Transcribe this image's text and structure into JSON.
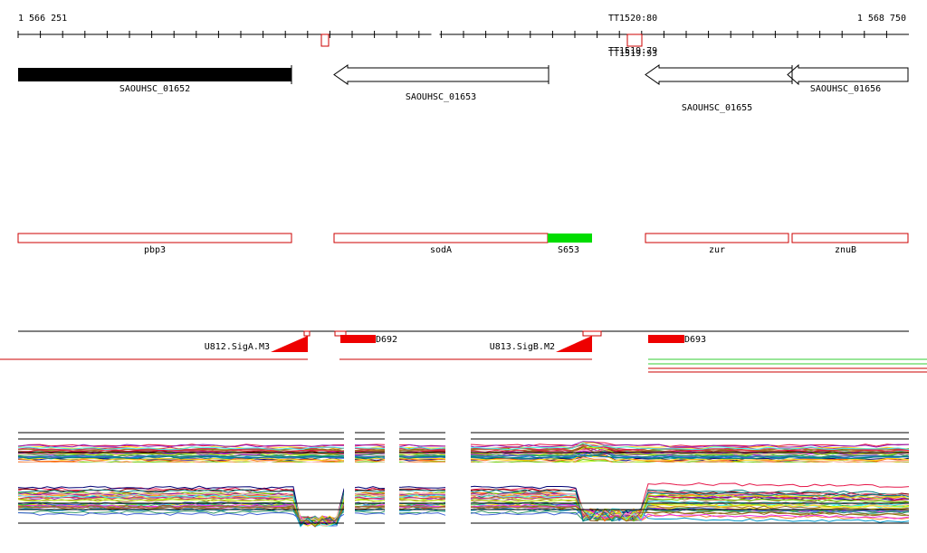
{
  "ruler": {
    "start_label": "1 566 251",
    "end_label": "1 568 750",
    "terminators": [
      "TT1520:80",
      "TT1519:79",
      "TT1519:93"
    ]
  },
  "genes": [
    {
      "id": "SAOUHSC_01652",
      "strand": "+",
      "style": "filled",
      "label": "SAOUHSC_01652"
    },
    {
      "id": "SAOUHSC_01653",
      "strand": "-",
      "style": "outline",
      "label": "SAOUHSC_01653"
    },
    {
      "id": "SAOUHSC_01655",
      "strand": "-",
      "style": "outline",
      "label": "SAOUHSC_01655"
    },
    {
      "id": "SAOUHSC_01656",
      "strand": "-",
      "style": "outline",
      "label": "SAOUHSC_01656"
    }
  ],
  "annotations": [
    {
      "label": "pbp3"
    },
    {
      "label": "sodA"
    },
    {
      "label": "S653"
    },
    {
      "label": "zur"
    },
    {
      "label": "znuB"
    }
  ],
  "features": [
    {
      "label": "U812.SigA.M3"
    },
    {
      "label": "D692"
    },
    {
      "label": "U813.SigB.M2"
    },
    {
      "label": "D693"
    }
  ],
  "colors": {
    "gene_fill": "#000000",
    "annotation_outline": "#cc0000",
    "highlight": "#00dd00",
    "feature": "#ee0000",
    "track_line_green": "#33cc33",
    "track_line_red": "#cc0000"
  }
}
